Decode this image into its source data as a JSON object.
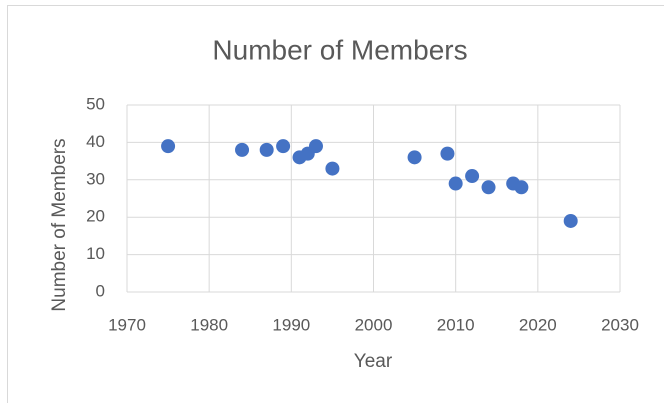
{
  "chart_data": {
    "type": "scatter",
    "title": "Number of Members",
    "x_label": "Year",
    "y_label": "Number of Members",
    "series": [
      {
        "name": "Number of Members",
        "color": "#4472c4",
        "x": [
          1975,
          1984,
          1987,
          1989,
          1991,
          1992,
          1993,
          1995,
          2005,
          2009,
          2010,
          2012,
          2014,
          2017,
          2018,
          2024
        ],
        "values": [
          39,
          38,
          38,
          39,
          36,
          37,
          39,
          33,
          36,
          37,
          29,
          31,
          28,
          29,
          28,
          19
        ]
      }
    ],
    "xlim": [
      1970,
      2030
    ],
    "xticks": [
      1970,
      1980,
      1990,
      2000,
      2010,
      2020,
      2030
    ],
    "ylim": [
      0,
      50
    ],
    "yticks": [
      0,
      10,
      20,
      30,
      40,
      50
    ],
    "grid": true
  }
}
